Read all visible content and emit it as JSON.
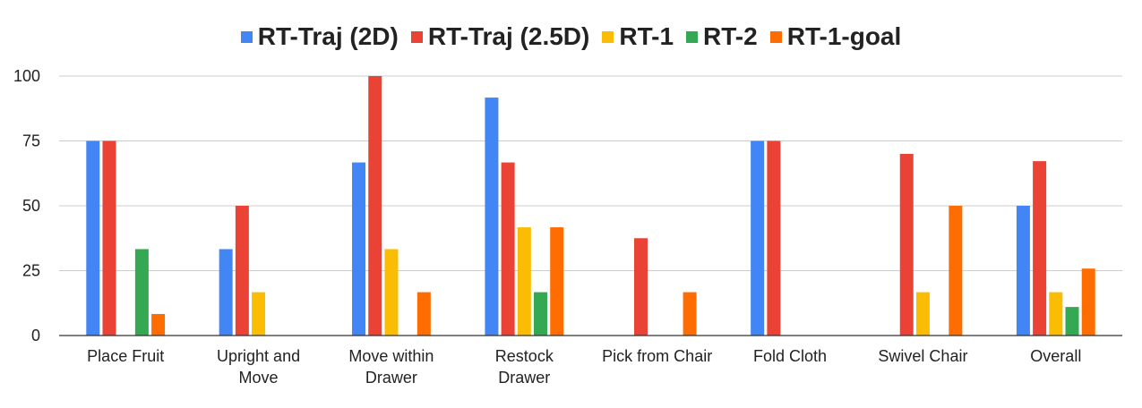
{
  "chart_data": {
    "type": "bar",
    "title": "",
    "xlabel": "",
    "ylabel": "",
    "ylim": [
      0,
      100
    ],
    "yticks": [
      0,
      25,
      50,
      75,
      100
    ],
    "grid": true,
    "legend_position": "top",
    "categories": [
      [
        "Place Fruit"
      ],
      [
        "Upright and",
        "Move"
      ],
      [
        "Move within",
        "Drawer"
      ],
      [
        "Restock",
        "Drawer"
      ],
      [
        "Pick from Chair"
      ],
      [
        "Fold Cloth"
      ],
      [
        "Swivel Chair"
      ],
      [
        "Overall"
      ]
    ],
    "series": [
      {
        "name": "RT-Traj (2D)",
        "color": "#4285f4",
        "values": [
          75,
          33.3,
          66.7,
          91.7,
          0,
          75,
          0,
          50
        ]
      },
      {
        "name": "RT-Traj (2.5D)",
        "color": "#ea4335",
        "values": [
          75,
          50,
          100,
          66.7,
          37.5,
          75,
          70,
          67.2
        ]
      },
      {
        "name": "RT-1",
        "color": "#fbbc04",
        "values": [
          0,
          16.7,
          33.3,
          41.7,
          0,
          0,
          16.7,
          16.7
        ]
      },
      {
        "name": "RT-2",
        "color": "#34a853",
        "values": [
          33.3,
          0,
          0,
          16.7,
          0,
          0,
          0,
          11
        ]
      },
      {
        "name": "RT-1-goal",
        "color": "#ff6d01",
        "values": [
          8.3,
          0,
          16.7,
          41.7,
          16.7,
          0,
          50,
          25.8
        ]
      }
    ]
  }
}
